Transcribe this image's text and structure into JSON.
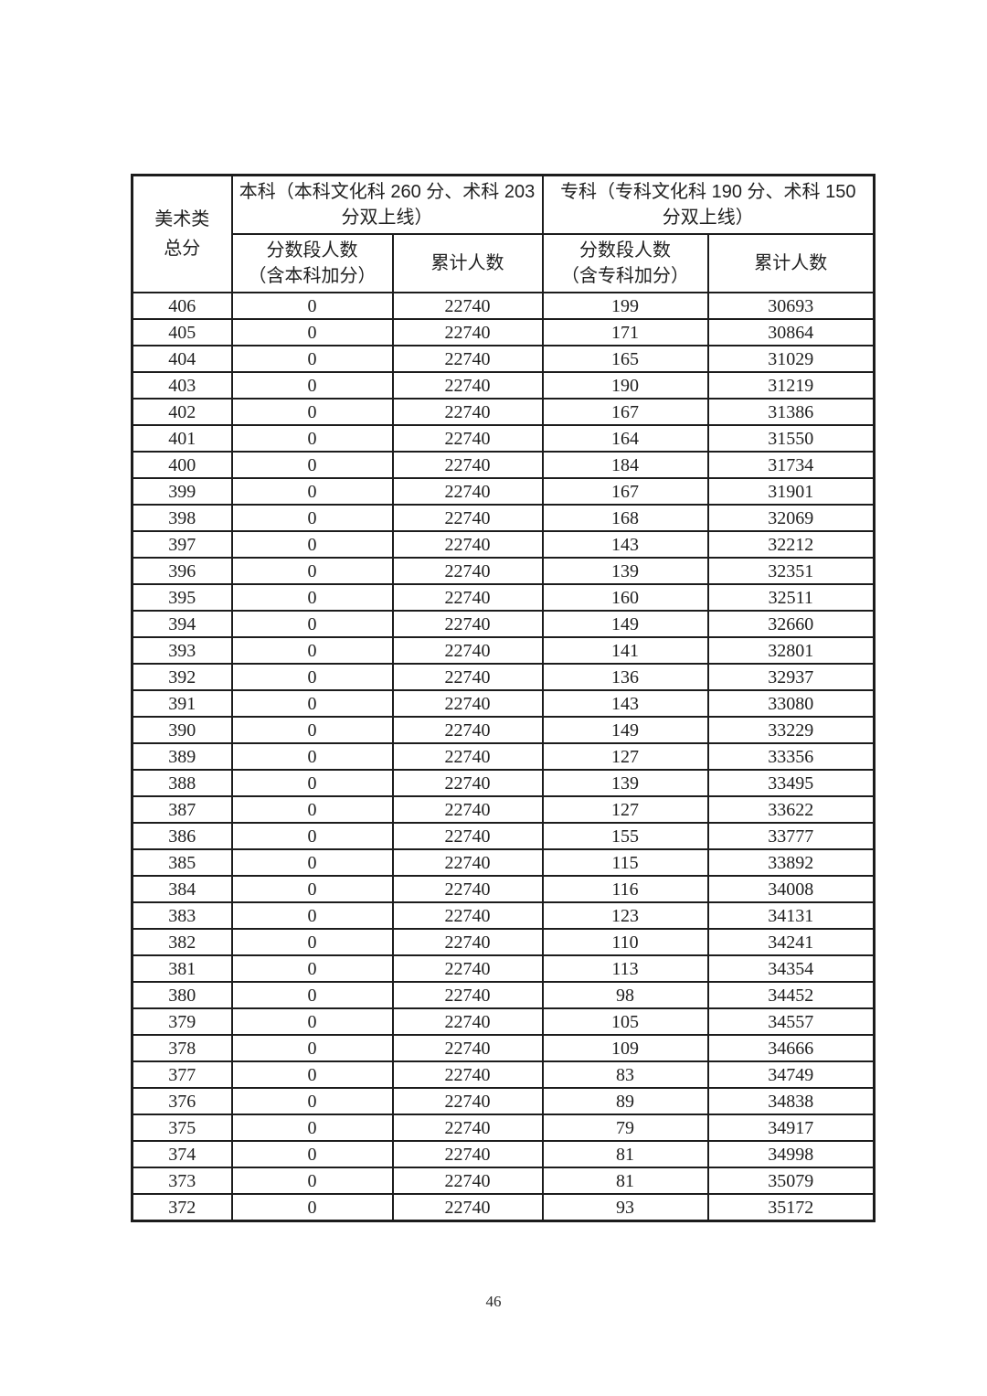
{
  "colors": {
    "page_background": "#ffffff",
    "text": "#1f1f1f",
    "table_border": "#1c1c1c"
  },
  "page": {
    "number": "46"
  },
  "table": {
    "corner_header": "美术类\n总分",
    "benke_group": "本科（本科文化科 260 分、术科 203\n分双上线）",
    "zhuanke_group": "专科（专科文化科 190 分、术科 150\n分双上线）",
    "subheaders": {
      "benke_segment": "分数段人数\n（含本科加分）",
      "benke_cumulative": "累计人数",
      "zhuanke_segment": "分数段人数\n（含专科加分）",
      "zhuanke_cumulative": "累计人数"
    },
    "rows": [
      [
        "406",
        "0",
        "22740",
        "199",
        "30693"
      ],
      [
        "405",
        "0",
        "22740",
        "171",
        "30864"
      ],
      [
        "404",
        "0",
        "22740",
        "165",
        "31029"
      ],
      [
        "403",
        "0",
        "22740",
        "190",
        "31219"
      ],
      [
        "402",
        "0",
        "22740",
        "167",
        "31386"
      ],
      [
        "401",
        "0",
        "22740",
        "164",
        "31550"
      ],
      [
        "400",
        "0",
        "22740",
        "184",
        "31734"
      ],
      [
        "399",
        "0",
        "22740",
        "167",
        "31901"
      ],
      [
        "398",
        "0",
        "22740",
        "168",
        "32069"
      ],
      [
        "397",
        "0",
        "22740",
        "143",
        "32212"
      ],
      [
        "396",
        "0",
        "22740",
        "139",
        "32351"
      ],
      [
        "395",
        "0",
        "22740",
        "160",
        "32511"
      ],
      [
        "394",
        "0",
        "22740",
        "149",
        "32660"
      ],
      [
        "393",
        "0",
        "22740",
        "141",
        "32801"
      ],
      [
        "392",
        "0",
        "22740",
        "136",
        "32937"
      ],
      [
        "391",
        "0",
        "22740",
        "143",
        "33080"
      ],
      [
        "390",
        "0",
        "22740",
        "149",
        "33229"
      ],
      [
        "389",
        "0",
        "22740",
        "127",
        "33356"
      ],
      [
        "388",
        "0",
        "22740",
        "139",
        "33495"
      ],
      [
        "387",
        "0",
        "22740",
        "127",
        "33622"
      ],
      [
        "386",
        "0",
        "22740",
        "155",
        "33777"
      ],
      [
        "385",
        "0",
        "22740",
        "115",
        "33892"
      ],
      [
        "384",
        "0",
        "22740",
        "116",
        "34008"
      ],
      [
        "383",
        "0",
        "22740",
        "123",
        "34131"
      ],
      [
        "382",
        "0",
        "22740",
        "110",
        "34241"
      ],
      [
        "381",
        "0",
        "22740",
        "113",
        "34354"
      ],
      [
        "380",
        "0",
        "22740",
        "98",
        "34452"
      ],
      [
        "379",
        "0",
        "22740",
        "105",
        "34557"
      ],
      [
        "378",
        "0",
        "22740",
        "109",
        "34666"
      ],
      [
        "377",
        "0",
        "22740",
        "83",
        "34749"
      ],
      [
        "376",
        "0",
        "22740",
        "89",
        "34838"
      ],
      [
        "375",
        "0",
        "22740",
        "79",
        "34917"
      ],
      [
        "374",
        "0",
        "22740",
        "81",
        "34998"
      ],
      [
        "373",
        "0",
        "22740",
        "81",
        "35079"
      ],
      [
        "372",
        "0",
        "22740",
        "93",
        "35172"
      ]
    ]
  }
}
